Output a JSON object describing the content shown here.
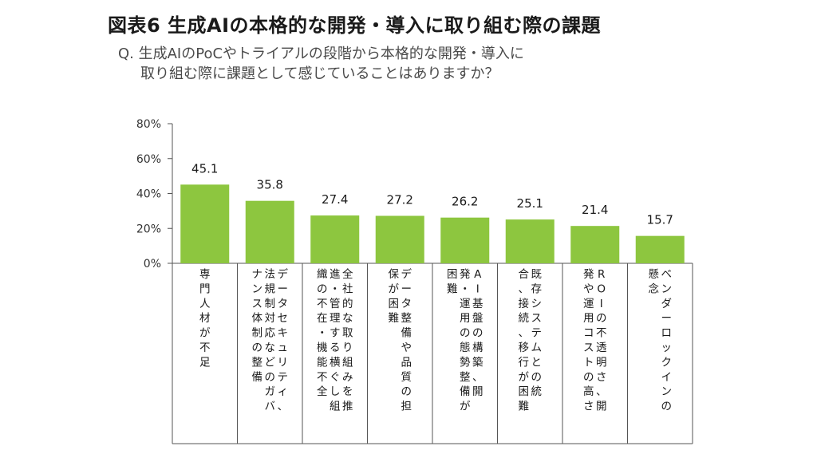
{
  "header": {
    "title": "図表6 生成AIの本格的な開発・導入に取り組む際の課題",
    "question_line1": "Q. 生成AIのPoCやトライアルの段階から本格的な開発・導入に",
    "question_line2": "取り組む際に課題として感じていることはありますか？"
  },
  "chart_data": {
    "type": "bar",
    "title": "図表6 生成AIの本格的な開発・導入に取り組む際の課題",
    "xlabel": "",
    "ylabel": "",
    "ylim": [
      0,
      80
    ],
    "yticks": [
      "0%",
      "20%",
      "40%",
      "60%",
      "80%"
    ],
    "grid": false,
    "bar_color": "#8dc63f",
    "categories": [
      {
        "columns": [
          "専門人材が不足"
        ]
      },
      {
        "columns": [
          "データセキュリティ、",
          "法規制対応などのガバ",
          "ナンス体制の整備"
        ]
      },
      {
        "columns": [
          "全社的な取り組みを推",
          "進・管理する横ぐし組",
          "織の不在・機能不全"
        ]
      },
      {
        "columns": [
          "データ整備や品質の担",
          "保が困難"
        ]
      },
      {
        "columns": [
          "AI基盤の構築、開",
          "発・運用の態勢整備が",
          "困難"
        ]
      },
      {
        "columns": [
          "既存システムとの統",
          "合、接続、移行が困難"
        ]
      },
      {
        "columns": [
          "ROIの不透明さ、開",
          "発や運用コストの高さ"
        ]
      },
      {
        "columns": [
          "ベンダーロックインの",
          "懸念"
        ]
      }
    ],
    "values": [
      45.1,
      35.8,
      27.4,
      27.2,
      26.2,
      25.1,
      21.4,
      15.7
    ],
    "value_labels": [
      "45.1",
      "35.8",
      "27.4",
      "27.2",
      "26.2",
      "25.1",
      "21.4",
      "15.7"
    ]
  }
}
